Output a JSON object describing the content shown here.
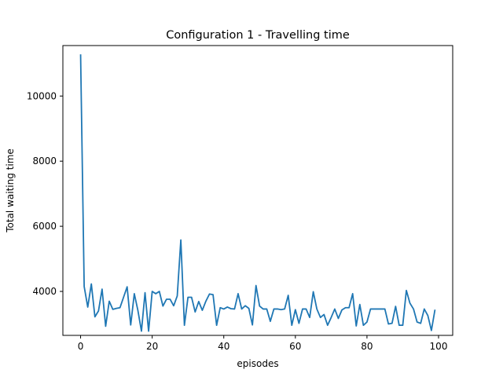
{
  "chart_data": {
    "type": "line",
    "title": "Configuration 1 - Travelling time",
    "xlabel": "episodes",
    "ylabel": "Total waiting time",
    "xlim": [
      -4.95,
      103.95
    ],
    "ylim": [
      2650,
      11550
    ],
    "xticks": [
      0,
      20,
      40,
      60,
      80,
      100
    ],
    "yticks": [
      4000,
      6000,
      8000,
      10000
    ],
    "grid": false,
    "line_color": "#1f77b4",
    "series": [
      {
        "x": [
          0,
          1,
          2,
          3,
          4,
          5,
          6,
          7,
          8,
          9,
          10,
          11,
          12,
          13,
          14,
          15,
          16,
          17,
          18,
          19,
          20,
          21,
          22,
          23,
          24,
          25,
          26,
          27,
          28,
          29,
          30,
          31,
          32,
          33,
          34,
          35,
          36,
          37,
          38,
          39,
          40,
          41,
          42,
          43,
          44,
          45,
          46,
          47,
          48,
          49,
          50,
          51,
          52,
          53,
          54,
          55,
          56,
          57,
          58,
          59,
          60,
          61,
          62,
          63,
          64,
          65,
          66,
          67,
          68,
          69,
          70,
          71,
          72,
          73,
          74,
          75,
          76,
          77,
          78,
          79,
          80,
          81,
          82,
          83,
          84,
          85,
          86,
          87,
          88,
          89,
          90,
          91,
          92,
          93,
          94,
          95,
          96,
          97,
          98,
          99
        ],
        "values": [
          11280,
          4150,
          3520,
          4230,
          3220,
          3400,
          4070,
          2930,
          3700,
          3450,
          3480,
          3500,
          3820,
          4140,
          2970,
          3930,
          3420,
          2780,
          3960,
          2780,
          4000,
          3930,
          4000,
          3550,
          3760,
          3760,
          3560,
          3860,
          5580,
          2960,
          3820,
          3820,
          3370,
          3690,
          3420,
          3700,
          3920,
          3900,
          2960,
          3500,
          3460,
          3520,
          3470,
          3460,
          3930,
          3460,
          3560,
          3480,
          2970,
          4180,
          3550,
          3460,
          3460,
          3080,
          3460,
          3460,
          3440,
          3460,
          3880,
          2960,
          3440,
          3020,
          3460,
          3460,
          3200,
          3990,
          3460,
          3200,
          3290,
          2960,
          3200,
          3460,
          3170,
          3430,
          3500,
          3500,
          3930,
          2940,
          3600,
          2960,
          3060,
          3460,
          3460,
          3460,
          3460,
          3460,
          3000,
          3020,
          3540,
          2960,
          2960,
          4030,
          3640,
          3460,
          3060,
          3020,
          3460,
          3260,
          2800,
          3440
        ]
      }
    ]
  }
}
